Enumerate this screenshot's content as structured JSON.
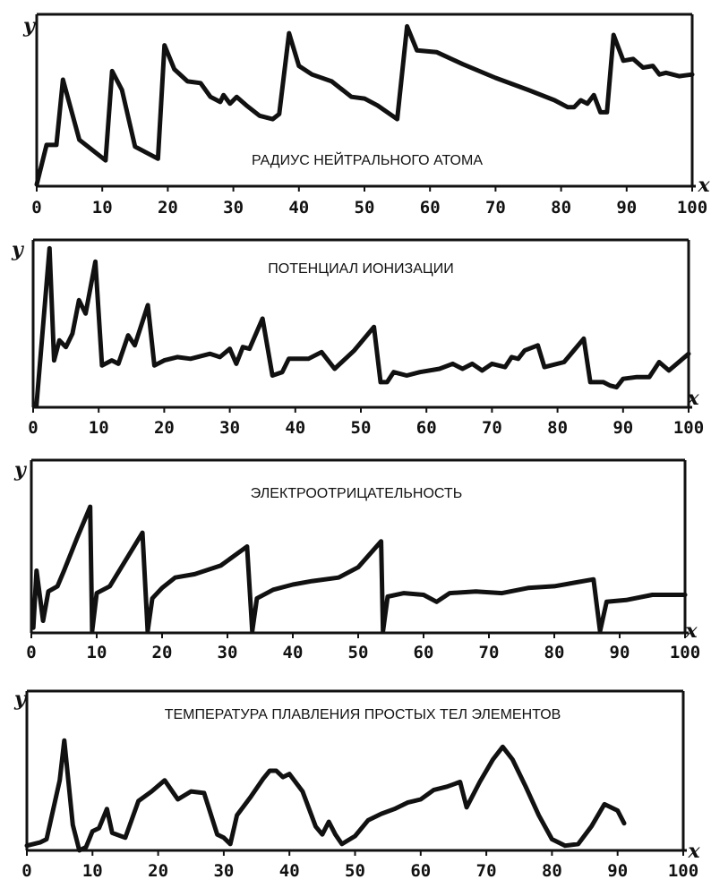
{
  "chart_data": [
    {
      "type": "line",
      "title": "РАДИУС НЕЙТРАЛЬНОГО АТОМА",
      "xlabel": "x",
      "ylabel": "y",
      "xlim": [
        0,
        100
      ],
      "ylim": [
        0,
        10
      ],
      "x_ticks": [
        "0",
        "10",
        "20",
        "30",
        "40",
        "50",
        "60",
        "70",
        "80",
        "90",
        "100"
      ],
      "grid": false,
      "color": "#111111",
      "points": [
        [
          0,
          0.1
        ],
        [
          1.5,
          2.4
        ],
        [
          3,
          2.4
        ],
        [
          4,
          6.2
        ],
        [
          6.5,
          2.7
        ],
        [
          10.5,
          1.5
        ],
        [
          11.5,
          6.7
        ],
        [
          13,
          5.6
        ],
        [
          15,
          2.3
        ],
        [
          18.5,
          1.6
        ],
        [
          19.5,
          8.2
        ],
        [
          21,
          6.8
        ],
        [
          23,
          6.1
        ],
        [
          25,
          6.0
        ],
        [
          26.5,
          5.2
        ],
        [
          28,
          4.9
        ],
        [
          28.5,
          5.3
        ],
        [
          29.5,
          4.8
        ],
        [
          30.5,
          5.2
        ],
        [
          32,
          4.7
        ],
        [
          34,
          4.1
        ],
        [
          36,
          3.9
        ],
        [
          37,
          4.2
        ],
        [
          38.5,
          8.9
        ],
        [
          40,
          7.0
        ],
        [
          42,
          6.5
        ],
        [
          45,
          6.1
        ],
        [
          48,
          5.2
        ],
        [
          50,
          5.1
        ],
        [
          52,
          4.7
        ],
        [
          55,
          3.9
        ],
        [
          56.5,
          9.3
        ],
        [
          58,
          7.9
        ],
        [
          61,
          7.8
        ],
        [
          65,
          7.1
        ],
        [
          70,
          6.3
        ],
        [
          75,
          5.6
        ],
        [
          79,
          5.0
        ],
        [
          81,
          4.6
        ],
        [
          82,
          4.6
        ],
        [
          83,
          5.0
        ],
        [
          84,
          4.8
        ],
        [
          85,
          5.3
        ],
        [
          86,
          4.3
        ],
        [
          87,
          4.3
        ],
        [
          88,
          8.8
        ],
        [
          89.5,
          7.3
        ],
        [
          91,
          7.4
        ],
        [
          92.5,
          6.9
        ],
        [
          94,
          7.0
        ],
        [
          95,
          6.5
        ],
        [
          96,
          6.6
        ],
        [
          98,
          6.4
        ],
        [
          100,
          6.5
        ]
      ]
    },
    {
      "type": "line",
      "title": "ПОТЕНЦИАЛ ИОНИЗАЦИИ",
      "xlabel": "x",
      "ylabel": "y",
      "xlim": [
        0,
        100
      ],
      "ylim": [
        0,
        10
      ],
      "x_ticks": [
        "0",
        "10",
        "20",
        "30",
        "40",
        "50",
        "60",
        "70",
        "80",
        "90",
        "100"
      ],
      "grid": false,
      "color": "#111111",
      "points": [
        [
          0.5,
          0.1
        ],
        [
          2.5,
          9.5
        ],
        [
          3.2,
          2.8
        ],
        [
          4,
          4.0
        ],
        [
          5,
          3.6
        ],
        [
          6,
          4.4
        ],
        [
          7,
          6.4
        ],
        [
          8,
          5.6
        ],
        [
          9.5,
          8.7
        ],
        [
          10.5,
          2.5
        ],
        [
          12,
          2.8
        ],
        [
          13,
          2.6
        ],
        [
          14.5,
          4.3
        ],
        [
          15.5,
          3.7
        ],
        [
          17.5,
          6.1
        ],
        [
          18.5,
          2.5
        ],
        [
          20,
          2.8
        ],
        [
          22,
          3.0
        ],
        [
          24,
          2.9
        ],
        [
          27,
          3.2
        ],
        [
          28.5,
          3.0
        ],
        [
          30,
          3.5
        ],
        [
          31,
          2.6
        ],
        [
          32,
          3.6
        ],
        [
          33,
          3.5
        ],
        [
          35,
          5.3
        ],
        [
          36.5,
          1.9
        ],
        [
          38,
          2.1
        ],
        [
          39,
          2.9
        ],
        [
          42,
          2.9
        ],
        [
          44,
          3.3
        ],
        [
          46,
          2.3
        ],
        [
          49,
          3.4
        ],
        [
          52,
          4.8
        ],
        [
          53,
          1.5
        ],
        [
          54,
          1.5
        ],
        [
          55,
          2.1
        ],
        [
          57,
          1.9
        ],
        [
          59,
          2.1
        ],
        [
          62,
          2.3
        ],
        [
          64,
          2.6
        ],
        [
          65.5,
          2.3
        ],
        [
          67,
          2.6
        ],
        [
          68.5,
          2.2
        ],
        [
          70,
          2.6
        ],
        [
          72,
          2.4
        ],
        [
          73,
          3.0
        ],
        [
          74,
          2.9
        ],
        [
          75,
          3.4
        ],
        [
          77,
          3.7
        ],
        [
          78,
          2.4
        ],
        [
          81,
          2.7
        ],
        [
          84,
          4.1
        ],
        [
          85,
          1.5
        ],
        [
          87,
          1.5
        ],
        [
          88,
          1.3
        ],
        [
          89,
          1.2
        ],
        [
          90,
          1.7
        ],
        [
          92,
          1.8
        ],
        [
          94,
          1.8
        ],
        [
          95.5,
          2.7
        ],
        [
          97,
          2.2
        ],
        [
          100,
          3.2
        ]
      ]
    },
    {
      "type": "line",
      "title": "ЭЛЕКТРООТРИЦАТЕЛЬНОСТЬ",
      "xlabel": "x",
      "ylabel": "y",
      "xlim": [
        0,
        100
      ],
      "ylim": [
        0,
        10
      ],
      "x_ticks": [
        "0",
        "10",
        "20",
        "30",
        "40",
        "50",
        "60",
        "70",
        "80",
        "90",
        "100"
      ],
      "grid": false,
      "color": "#111111",
      "points": [
        [
          0.3,
          0.3
        ],
        [
          0.8,
          3.6
        ],
        [
          1.8,
          0.7
        ],
        [
          2.6,
          2.4
        ],
        [
          4,
          2.7
        ],
        [
          5,
          3.6
        ],
        [
          7,
          5.5
        ],
        [
          9,
          7.3
        ],
        [
          9.3,
          0.1
        ],
        [
          10,
          2.3
        ],
        [
          12,
          2.7
        ],
        [
          17,
          5.8
        ],
        [
          17.8,
          0.1
        ],
        [
          18.5,
          2.0
        ],
        [
          20,
          2.6
        ],
        [
          22,
          3.2
        ],
        [
          25,
          3.4
        ],
        [
          29,
          3.9
        ],
        [
          33,
          5.0
        ],
        [
          33.8,
          0.1
        ],
        [
          34.5,
          2.0
        ],
        [
          37,
          2.5
        ],
        [
          40,
          2.8
        ],
        [
          43,
          3.0
        ],
        [
          47,
          3.2
        ],
        [
          50,
          3.8
        ],
        [
          53.5,
          5.3
        ],
        [
          53.8,
          0.1
        ],
        [
          54.5,
          2.1
        ],
        [
          57,
          2.3
        ],
        [
          60,
          2.2
        ],
        [
          62,
          1.8
        ],
        [
          64,
          2.3
        ],
        [
          68,
          2.4
        ],
        [
          72,
          2.3
        ],
        [
          76,
          2.6
        ],
        [
          80,
          2.7
        ],
        [
          86,
          3.1
        ],
        [
          87,
          0.1
        ],
        [
          88,
          1.8
        ],
        [
          91,
          1.9
        ],
        [
          95,
          2.2
        ],
        [
          100,
          2.2
        ]
      ]
    },
    {
      "type": "line",
      "title": "ТЕМПЕРАТУРА ПЛАВЛЕНИЯ ПРОСТЫХ ТЕЛ ЭЛЕМЕНТОВ",
      "xlabel": "x",
      "ylabel": "y",
      "xlim": [
        0,
        100
      ],
      "ylim": [
        0,
        10
      ],
      "x_ticks": [
        "0",
        "10",
        "20",
        "30",
        "40",
        "50",
        "60",
        "70",
        "80",
        "90",
        "100"
      ],
      "grid": false,
      "color": "#111111",
      "points": [
        [
          0,
          0.3
        ],
        [
          2,
          0.5
        ],
        [
          3,
          0.7
        ],
        [
          5,
          4.4
        ],
        [
          5.7,
          6.9
        ],
        [
          7,
          1.6
        ],
        [
          8,
          0.0
        ],
        [
          9,
          0.2
        ],
        [
          10,
          1.2
        ],
        [
          11,
          1.4
        ],
        [
          12.2,
          2.6
        ],
        [
          13,
          1.1
        ],
        [
          15,
          0.8
        ],
        [
          17,
          3.1
        ],
        [
          19,
          3.7
        ],
        [
          21,
          4.4
        ],
        [
          23,
          3.2
        ],
        [
          25,
          3.7
        ],
        [
          27,
          3.6
        ],
        [
          29,
          1.0
        ],
        [
          30,
          0.8
        ],
        [
          31,
          0.4
        ],
        [
          32,
          2.2
        ],
        [
          34,
          3.3
        ],
        [
          36,
          4.5
        ],
        [
          37,
          5.0
        ],
        [
          38,
          5.0
        ],
        [
          39,
          4.6
        ],
        [
          40,
          4.8
        ],
        [
          42,
          3.7
        ],
        [
          44,
          1.5
        ],
        [
          45,
          1.0
        ],
        [
          46,
          1.8
        ],
        [
          47,
          1.0
        ],
        [
          48,
          0.4
        ],
        [
          50,
          0.9
        ],
        [
          52,
          1.9
        ],
        [
          54,
          2.3
        ],
        [
          56,
          2.6
        ],
        [
          58,
          3.0
        ],
        [
          60,
          3.2
        ],
        [
          62,
          3.8
        ],
        [
          64,
          4.0
        ],
        [
          66,
          4.3
        ],
        [
          67,
          2.7
        ],
        [
          69,
          4.3
        ],
        [
          71,
          5.7
        ],
        [
          72.5,
          6.5
        ],
        [
          74,
          5.7
        ],
        [
          76,
          4.0
        ],
        [
          78,
          2.2
        ],
        [
          80,
          0.7
        ],
        [
          82,
          0.3
        ],
        [
          84,
          0.4
        ],
        [
          86,
          1.5
        ],
        [
          88,
          2.9
        ],
        [
          90,
          2.5
        ],
        [
          91,
          1.7
        ]
      ]
    }
  ]
}
